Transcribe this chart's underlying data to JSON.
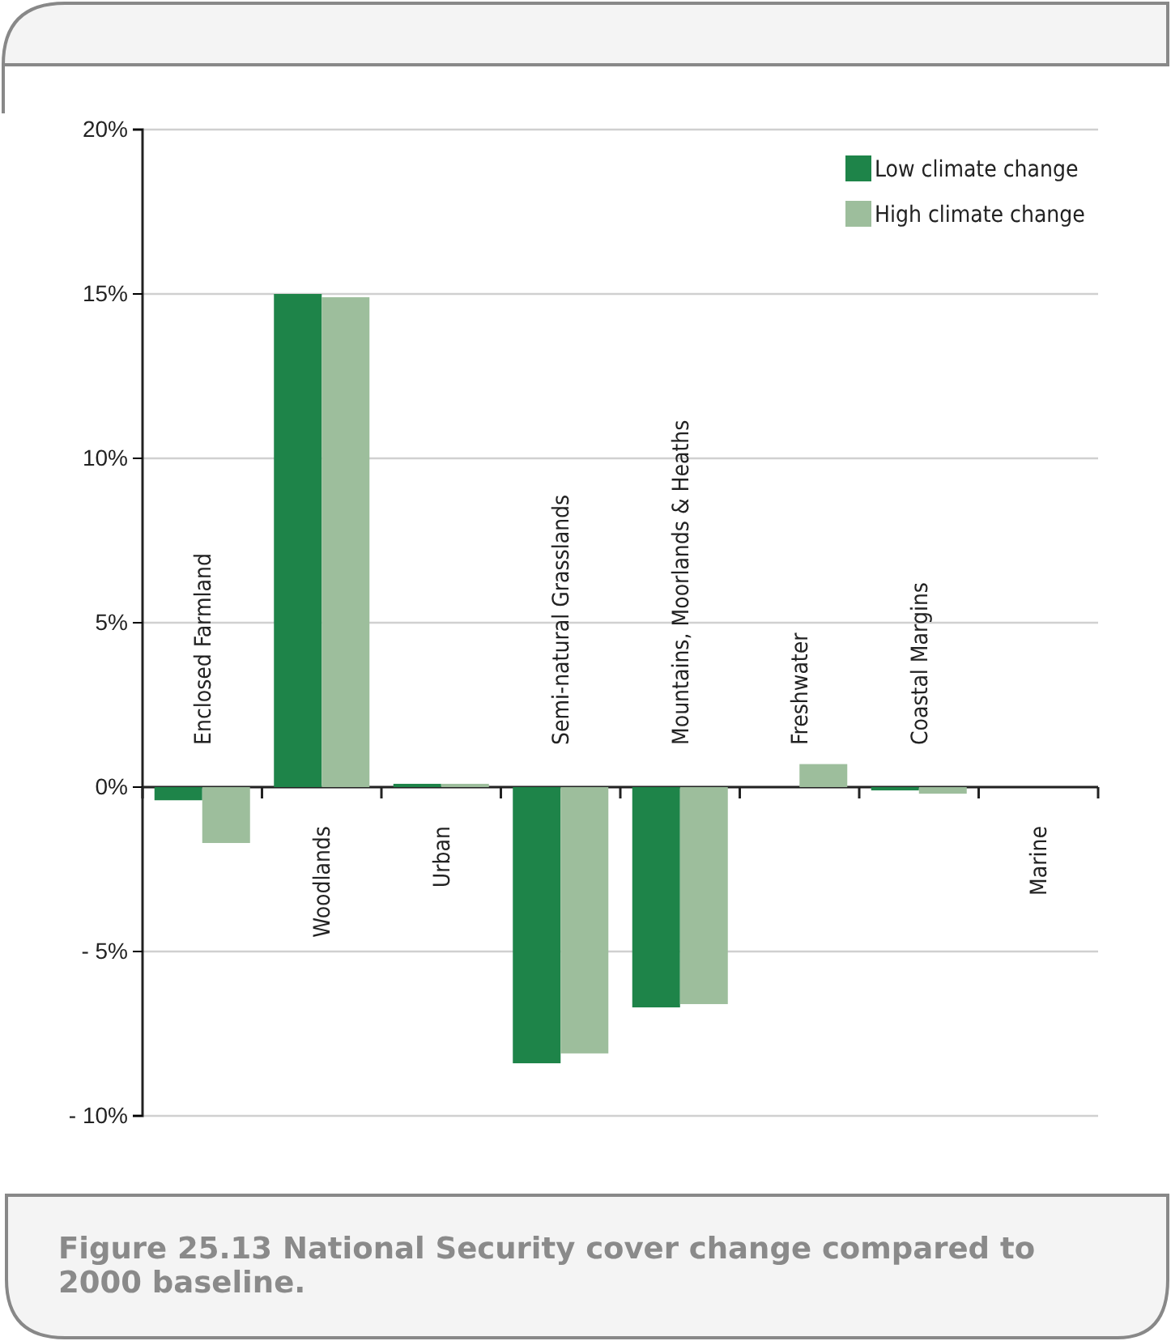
{
  "chart_data": {
    "type": "bar",
    "title": "Figure 25.13 National Security cover change compared to 2000 baseline.",
    "categories": [
      "Enclosed Farmland",
      "Woodlands",
      "Urban",
      "Semi-natural Grasslands",
      "Mountains, Moorlands & Heaths",
      "Freshwater",
      "Coastal Margins",
      "Marine"
    ],
    "series": [
      {
        "name": "Low climate change",
        "color": "#1e8449",
        "values": [
          -0.4,
          15.0,
          0.1,
          -8.4,
          -6.7,
          0,
          -0.1,
          0
        ]
      },
      {
        "name": "High climate change",
        "color": "#9dbe9c",
        "values": [
          -1.7,
          14.9,
          0.1,
          -8.1,
          -6.6,
          0.7,
          -0.2,
          0
        ]
      }
    ],
    "ylim": [
      -10,
      20
    ],
    "yticks": [
      {
        "value": -10,
        "label": "- 10%"
      },
      {
        "value": -5,
        "label": "- 5%"
      },
      {
        "value": 0,
        "label": "0%"
      },
      {
        "value": 5,
        "label": "5%"
      },
      {
        "value": 10,
        "label": "10%"
      },
      {
        "value": 15,
        "label": "15%"
      },
      {
        "value": 20,
        "label": "20%"
      }
    ],
    "grid": "y",
    "legend": "top right"
  }
}
